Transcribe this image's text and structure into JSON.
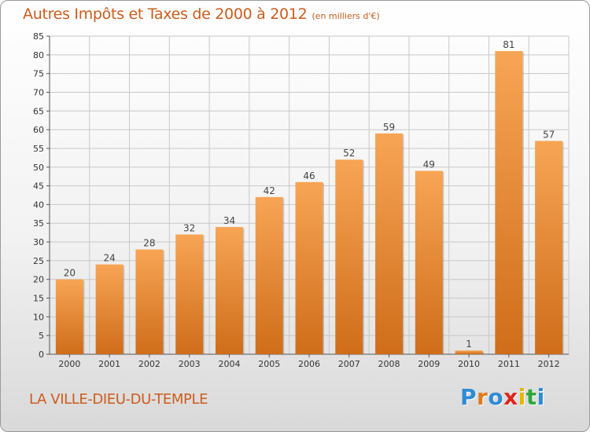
{
  "header": {
    "title": "Autres Impôts et Taxes de 2000 à 2012",
    "subtitle": "(en milliers d'€)"
  },
  "footer": {
    "place": "LA VILLE-DIEU-DU-TEMPLE",
    "logo_letters": [
      "P",
      "r",
      "o",
      "x",
      "i",
      "t",
      "i"
    ],
    "logo_colors": [
      "#2e8bd6",
      "#e07a1c",
      "#2e8bd6",
      "#e0241c",
      "#e8b400",
      "#2ea83a",
      "#2e8bd6"
    ]
  },
  "colors": {
    "bar_top": "#f7a555",
    "bar_bottom": "#cf6d1a",
    "grid": "#c8c8c8",
    "title": "#cc5c1d"
  },
  "chart_data": {
    "type": "bar",
    "categories": [
      "2000",
      "2001",
      "2002",
      "2003",
      "2004",
      "2005",
      "2006",
      "2007",
      "2008",
      "2009",
      "2010",
      "2011",
      "2012"
    ],
    "values": [
      20,
      24,
      28,
      32,
      34,
      42,
      46,
      52,
      59,
      49,
      1,
      81,
      57
    ],
    "data_labels": [
      "20",
      "24",
      "28",
      "32",
      "34",
      "42",
      "46",
      "52",
      "59",
      "49",
      "1",
      "81",
      "57"
    ],
    "yticks": [
      0,
      5,
      10,
      15,
      20,
      25,
      30,
      35,
      40,
      45,
      50,
      55,
      60,
      65,
      70,
      75,
      80,
      85
    ],
    "ylim": [
      0,
      85
    ],
    "grid": true,
    "xlabel": "",
    "ylabel": ""
  }
}
